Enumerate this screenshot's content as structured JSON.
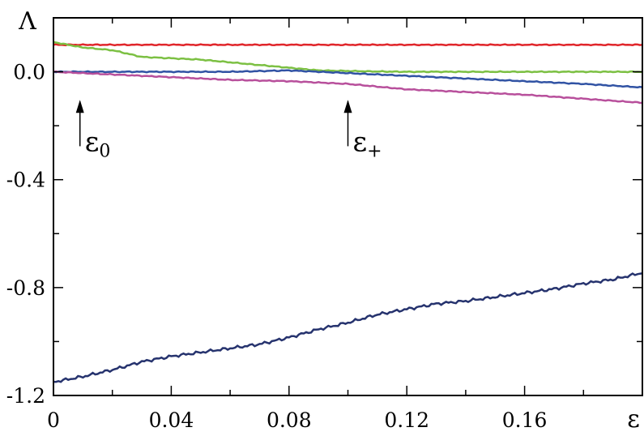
{
  "chart_data": {
    "type": "line",
    "xlabel": "ε",
    "ylabel": "Λ",
    "xlim": [
      0,
      0.2
    ],
    "ylim": [
      -1.2,
      0.2
    ],
    "x_ticks": [
      0,
      0.04,
      0.08,
      0.12,
      0.16
    ],
    "x_tick_labels": [
      "0",
      "0.04",
      "0.08",
      "0.12",
      "0.16"
    ],
    "y_ticks": [
      0.0,
      -0.4,
      -0.8,
      -1.2
    ],
    "y_tick_labels": [
      "0.0",
      "-0.4",
      "-0.8",
      "-1.2"
    ],
    "grid": false,
    "legend": "none",
    "reference_line": {
      "y": 0,
      "style": "dashed",
      "color": "#000000",
      "x_start": 0.12
    },
    "annotations": [
      {
        "symbol": "ε",
        "subscript": "0",
        "x": 0.009,
        "arrow_from": -0.3,
        "arrow_to": -0.08
      },
      {
        "symbol": "ε",
        "subscript": "+",
        "x": 0.1,
        "arrow_from": -0.3,
        "arrow_to": -0.08
      }
    ],
    "series": [
      {
        "color": "#e0262b",
        "x": [
          0,
          0.02,
          0.04,
          0.06,
          0.08,
          0.1,
          0.12,
          0.14,
          0.16,
          0.18,
          0.2
        ],
        "y": [
          0.1,
          0.1,
          0.1,
          0.1,
          0.1,
          0.1,
          0.1,
          0.1,
          0.1,
          0.1,
          0.1
        ]
      },
      {
        "color": "#7cc043",
        "x": [
          0,
          0.005,
          0.01,
          0.02,
          0.03,
          0.04,
          0.05,
          0.06,
          0.07,
          0.08,
          0.09,
          0.1,
          0.11,
          0.12,
          0.14,
          0.16,
          0.18,
          0.2
        ],
        "y": [
          0.11,
          0.1,
          0.09,
          0.08,
          0.055,
          0.05,
          0.045,
          0.035,
          0.025,
          0.015,
          0.005,
          0.003,
          0.001,
          0.0,
          0.0,
          0.0,
          0.0,
          0.0
        ]
      },
      {
        "color": "#3153a4",
        "x": [
          0,
          0.02,
          0.04,
          0.06,
          0.08,
          0.09,
          0.1,
          0.12,
          0.14,
          0.16,
          0.18,
          0.2
        ],
        "y": [
          0.0,
          0.0,
          0.0,
          0.0,
          0.005,
          0.0,
          -0.005,
          -0.015,
          -0.025,
          -0.035,
          -0.045,
          -0.058
        ]
      },
      {
        "color": "#b8509c",
        "x": [
          0,
          0.01,
          0.02,
          0.03,
          0.04,
          0.06,
          0.08,
          0.09,
          0.1,
          0.11,
          0.12,
          0.14,
          0.16,
          0.18,
          0.2
        ],
        "y": [
          0.0,
          -0.005,
          -0.01,
          -0.015,
          -0.02,
          -0.03,
          -0.035,
          -0.04,
          -0.045,
          -0.055,
          -0.065,
          -0.075,
          -0.085,
          -0.1,
          -0.115
        ]
      },
      {
        "color": "#26336e",
        "x": [
          0,
          0.01,
          0.02,
          0.03,
          0.04,
          0.05,
          0.06,
          0.07,
          0.08,
          0.09,
          0.1,
          0.11,
          0.12,
          0.13,
          0.14,
          0.15,
          0.16,
          0.17,
          0.18,
          0.19,
          0.2
        ],
        "y": [
          -1.15,
          -1.13,
          -1.105,
          -1.075,
          -1.055,
          -1.04,
          -1.025,
          -1.01,
          -0.985,
          -0.955,
          -0.93,
          -0.9,
          -0.88,
          -0.86,
          -0.85,
          -0.835,
          -0.82,
          -0.805,
          -0.785,
          -0.77,
          -0.745
        ]
      }
    ]
  }
}
